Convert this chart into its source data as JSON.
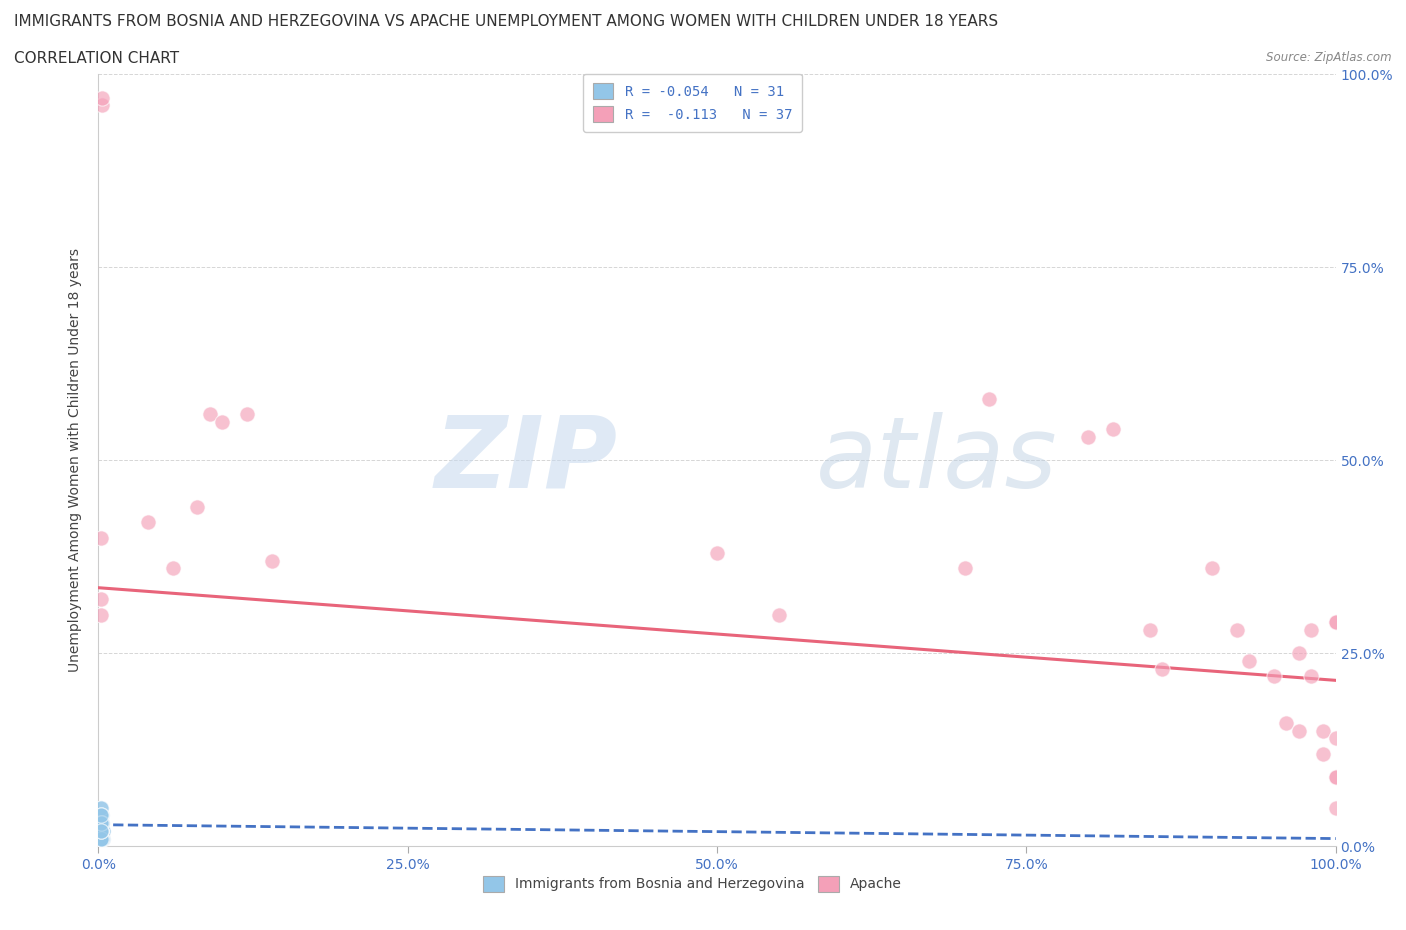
{
  "title_line1": "IMMIGRANTS FROM BOSNIA AND HERZEGOVINA VS APACHE UNEMPLOYMENT AMONG WOMEN WITH CHILDREN UNDER 18 YEARS",
  "title_line2": "CORRELATION CHART",
  "source_text": "Source: ZipAtlas.com",
  "ylabel": "Unemployment Among Women with Children Under 18 years",
  "xlim": [
    0,
    1.0
  ],
  "ylim": [
    0,
    1.0
  ],
  "xtick_labels": [
    "0.0%",
    "25.0%",
    "50.0%",
    "75.0%",
    "100.0%"
  ],
  "xtick_vals": [
    0,
    0.25,
    0.5,
    0.75,
    1.0
  ],
  "ytick_vals": [
    0,
    0.25,
    0.5,
    0.75,
    1.0
  ],
  "ytick_labels_right": [
    "0.0%",
    "25.0%",
    "50.0%",
    "75.0%",
    "100.0%"
  ],
  "watermark_zip": "ZIP",
  "watermark_atlas": "atlas",
  "legend_label1": "R = -0.054   N = 31",
  "legend_label2": "R =  -0.113   N = 37",
  "blue_dot_color": "#93c6e8",
  "pink_dot_color": "#f4a0b8",
  "blue_line_color": "#4472c4",
  "pink_line_color": "#e8647a",
  "axis_color": "#4472c4",
  "grid_color": "#cccccc",
  "background_color": "#ffffff",
  "blue_scatter_x": [
    0.002,
    0.002,
    0.003,
    0.002,
    0.002,
    0.004,
    0.002,
    0.003,
    0.004,
    0.002,
    0.002,
    0.002,
    0.002,
    0.002,
    0.003,
    0.004,
    0.002,
    0.002,
    0.002,
    0.002,
    0.002,
    0.002,
    0.003,
    0.002,
    0.002,
    0.003,
    0.002,
    0.002,
    0.002,
    0.002,
    0.002
  ],
  "blue_scatter_y": [
    0.04,
    0.02,
    0.03,
    0.05,
    0.01,
    0.02,
    0.03,
    0.04,
    0.01,
    0.02,
    0.01,
    0.03,
    0.02,
    0.04,
    0.01,
    0.02,
    0.05,
    0.03,
    0.02,
    0.01,
    0.03,
    0.02,
    0.01,
    0.04,
    0.02,
    0.03,
    0.01,
    0.02,
    0.03,
    0.04,
    0.02
  ],
  "pink_scatter_x": [
    0.002,
    0.002,
    0.002,
    0.003,
    0.003,
    0.04,
    0.06,
    0.08,
    0.09,
    0.1,
    0.12,
    0.14,
    0.5,
    0.55,
    0.7,
    0.72,
    0.8,
    0.82,
    0.85,
    0.86,
    0.9,
    0.92,
    0.93,
    0.95,
    0.96,
    0.97,
    0.98,
    0.99,
    1.0,
    1.0,
    0.97,
    0.98,
    0.99,
    1.0,
    1.0,
    1.0,
    1.0
  ],
  "pink_scatter_y": [
    0.3,
    0.32,
    0.4,
    0.96,
    0.97,
    0.42,
    0.36,
    0.44,
    0.56,
    0.55,
    0.56,
    0.37,
    0.38,
    0.3,
    0.36,
    0.58,
    0.53,
    0.54,
    0.28,
    0.23,
    0.36,
    0.28,
    0.24,
    0.22,
    0.16,
    0.25,
    0.22,
    0.12,
    0.29,
    0.09,
    0.15,
    0.28,
    0.15,
    0.29,
    0.09,
    0.14,
    0.05
  ],
  "blue_trendline_x": [
    0.0,
    1.0
  ],
  "blue_trendline_y": [
    0.028,
    0.01
  ],
  "pink_trendline_x": [
    0.0,
    1.0
  ],
  "pink_trendline_y": [
    0.335,
    0.215
  ],
  "legend_bottom_labels": [
    "Immigrants from Bosnia and Herzegovina",
    "Apache"
  ],
  "title_fontsize": 11,
  "axis_label_fontsize": 10,
  "tick_fontsize": 10
}
